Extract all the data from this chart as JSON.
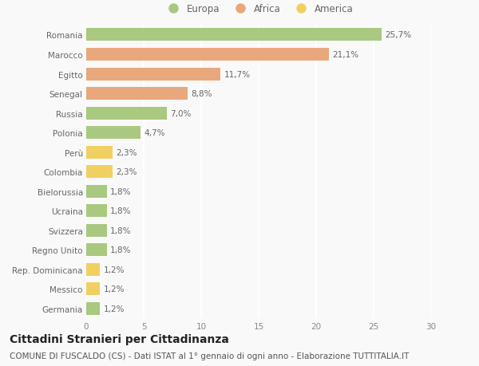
{
  "categories": [
    "Romania",
    "Marocco",
    "Egitto",
    "Senegal",
    "Russia",
    "Polonia",
    "Perù",
    "Colombia",
    "Bielorussia",
    "Ucraina",
    "Svizzera",
    "Regno Unito",
    "Rep. Dominicana",
    "Messico",
    "Germania"
  ],
  "values": [
    25.7,
    21.1,
    11.7,
    8.8,
    7.0,
    4.7,
    2.3,
    2.3,
    1.8,
    1.8,
    1.8,
    1.8,
    1.2,
    1.2,
    1.2
  ],
  "labels": [
    "25,7%",
    "21,1%",
    "11,7%",
    "8,8%",
    "7,0%",
    "4,7%",
    "2,3%",
    "2,3%",
    "1,8%",
    "1,8%",
    "1,8%",
    "1,8%",
    "1,2%",
    "1,2%",
    "1,2%"
  ],
  "continents": [
    "Europa",
    "Africa",
    "Africa",
    "Africa",
    "Europa",
    "Europa",
    "America",
    "America",
    "Europa",
    "Europa",
    "Europa",
    "Europa",
    "America",
    "America",
    "Europa"
  ],
  "colors": {
    "Europa": "#a8c97f",
    "Africa": "#e8a87c",
    "America": "#f0d060"
  },
  "xlim": [
    0,
    30
  ],
  "xticks": [
    0,
    5,
    10,
    15,
    20,
    25,
    30
  ],
  "title": "Cittadini Stranieri per Cittadinanza",
  "subtitle": "COMUNE DI FUSCALDO (CS) - Dati ISTAT al 1° gennaio di ogni anno - Elaborazione TUTTITALIA.IT",
  "background_color": "#f9f9f9",
  "grid_color": "#ffffff",
  "bar_height": 0.65,
  "title_fontsize": 10,
  "subtitle_fontsize": 7.5,
  "label_fontsize": 7.5,
  "tick_fontsize": 7.5,
  "legend_fontsize": 8.5
}
